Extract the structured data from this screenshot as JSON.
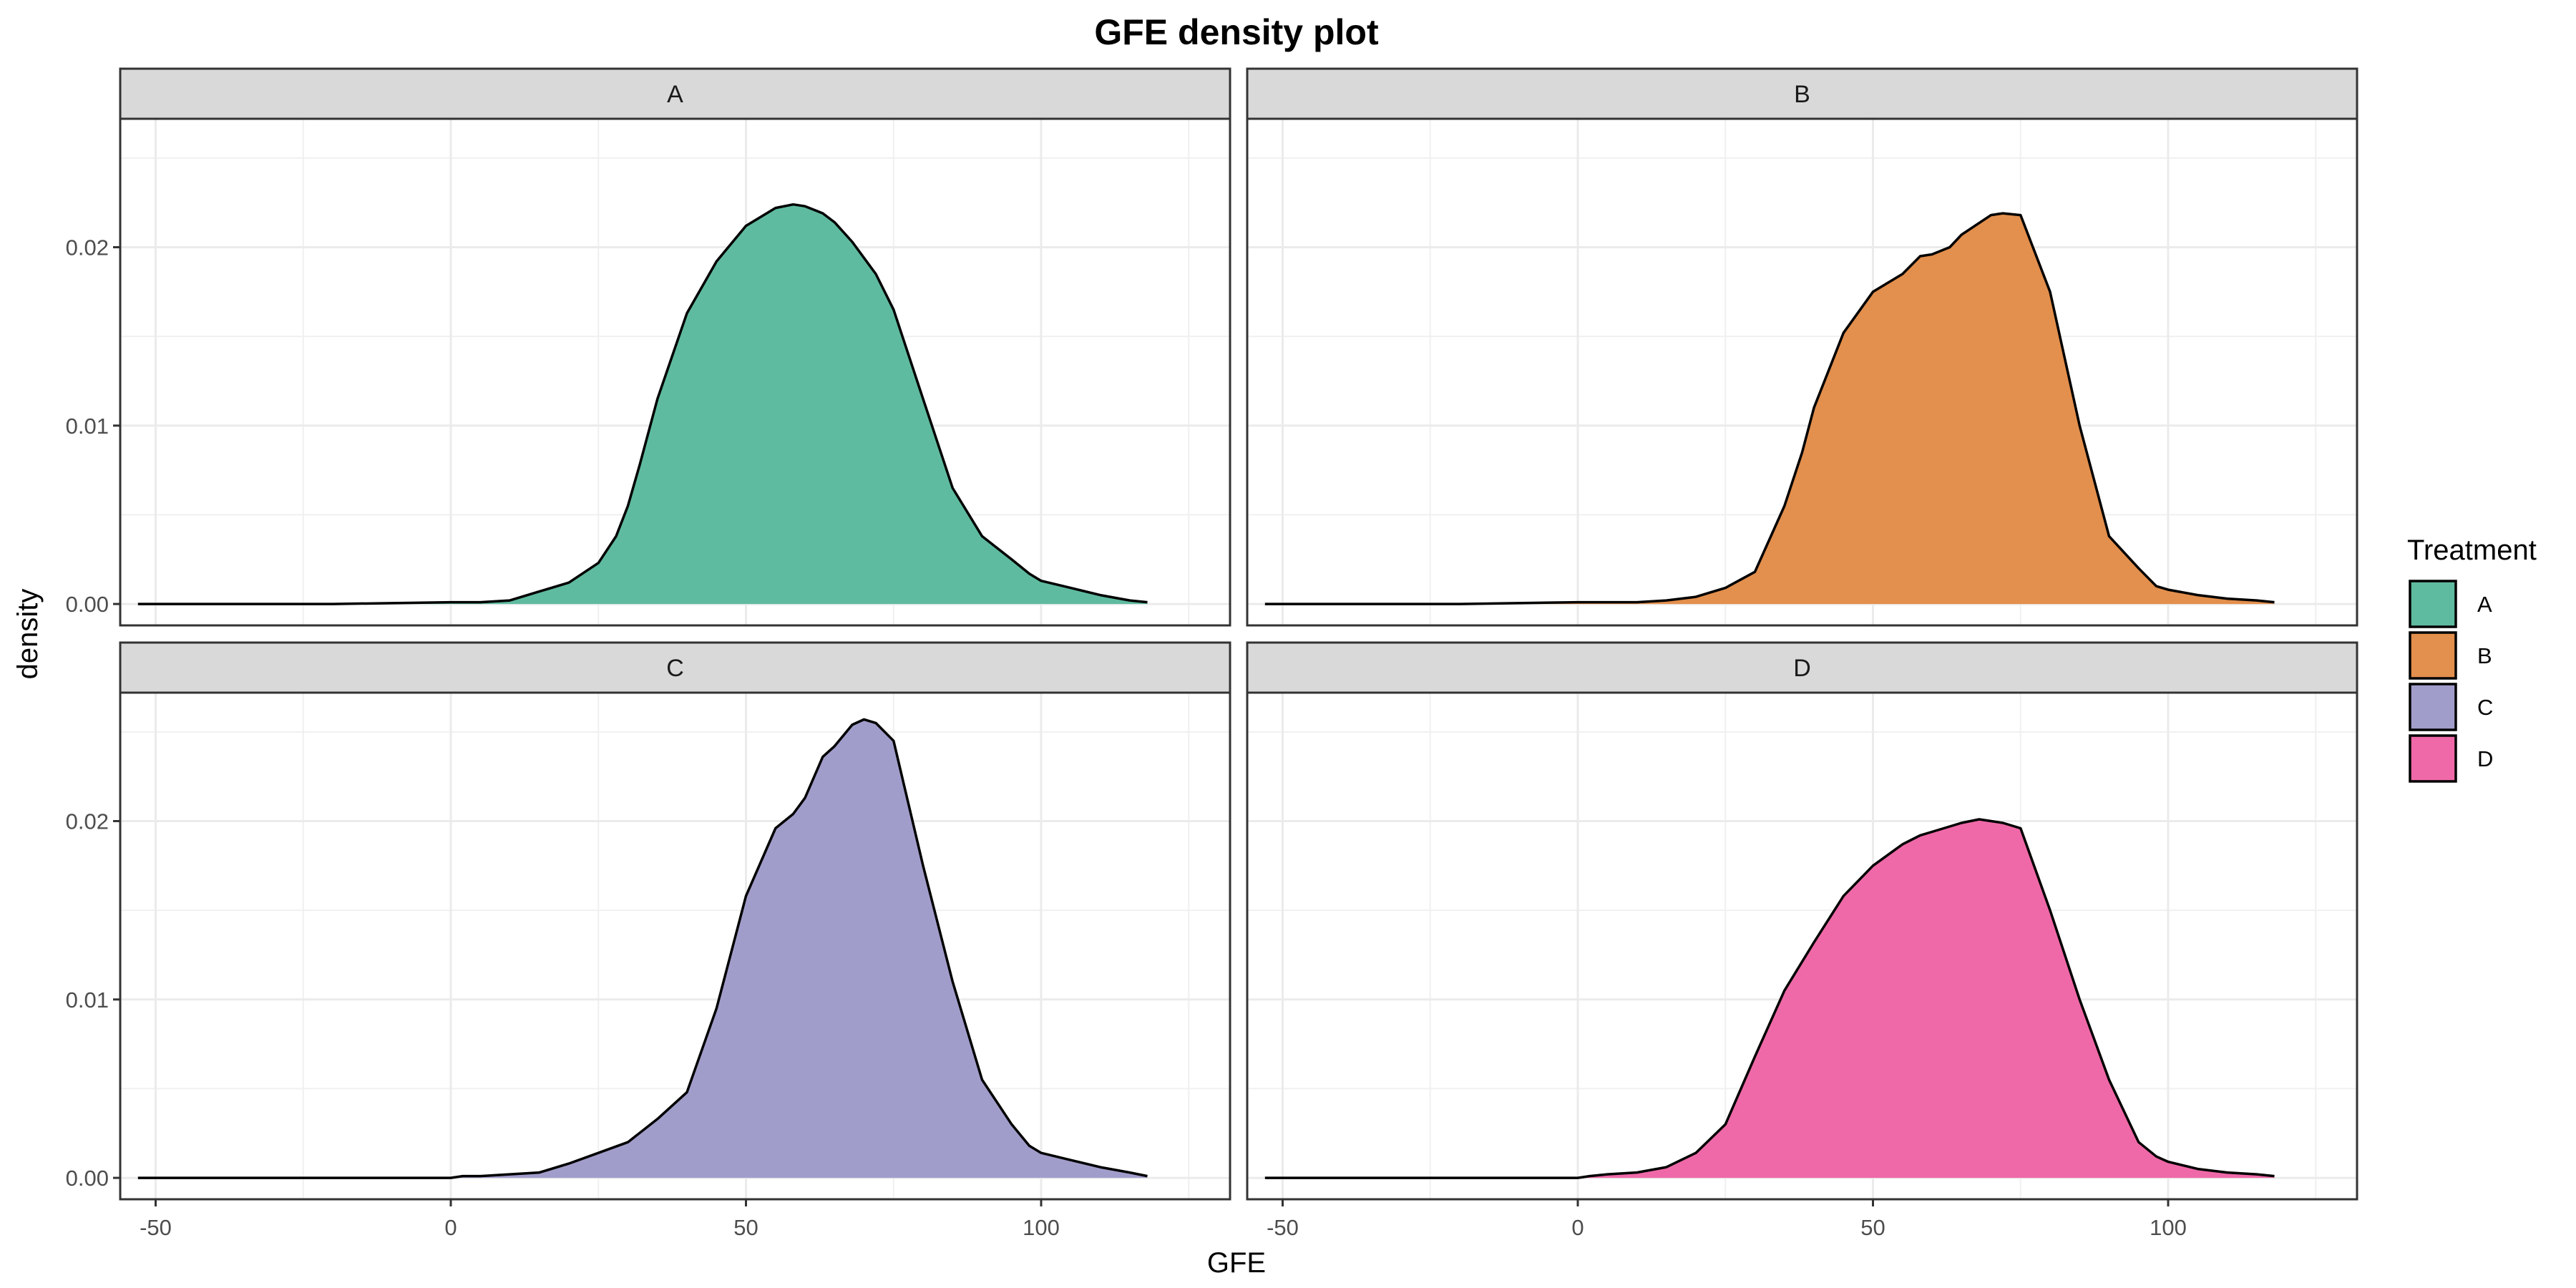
{
  "chart_data": {
    "type": "area",
    "title": "GFE density plot",
    "xlabel": "GFE",
    "ylabel": "density",
    "xlim": [
      -56,
      132
    ],
    "ylim": [
      -0.0012,
      0.0272
    ],
    "x_ticks": [
      -50,
      0,
      50,
      100
    ],
    "x_tick_labels": [
      "-50",
      "0",
      "50",
      "100"
    ],
    "y_ticks": [
      0,
      0.01,
      0.02
    ],
    "y_tick_labels": [
      "0.00",
      "0.01",
      "0.02"
    ],
    "grid": true,
    "legend": {
      "title": "Treatment",
      "position": "right",
      "entries": [
        {
          "label": "A",
          "color": "#5fbba0"
        },
        {
          "label": "B",
          "color": "#e38f4d"
        },
        {
          "label": "C",
          "color": "#a19dcb"
        },
        {
          "label": "D",
          "color": "#ef69a8"
        }
      ]
    },
    "panels": [
      {
        "label": "A",
        "color": "#5fbba0",
        "x": [
          -53,
          -40,
          -20,
          0,
          2,
          5,
          10,
          15,
          20,
          25,
          28,
          30,
          32,
          35,
          40,
          45,
          50,
          55,
          58,
          60,
          63,
          65,
          68,
          72,
          75,
          80,
          85,
          90,
          95,
          98,
          100,
          105,
          110,
          115,
          118
        ],
        "y": [
          0.0,
          0.0,
          0.0,
          0.0001,
          0.0001,
          0.0001,
          0.0002,
          0.0007,
          0.0012,
          0.0023,
          0.0038,
          0.0055,
          0.0078,
          0.0115,
          0.0163,
          0.0192,
          0.0212,
          0.0222,
          0.0224,
          0.0223,
          0.0219,
          0.0214,
          0.0203,
          0.0185,
          0.0165,
          0.0115,
          0.0065,
          0.0038,
          0.0025,
          0.0017,
          0.0013,
          0.0009,
          0.0005,
          0.0002,
          0.0001
        ]
      },
      {
        "label": "B",
        "color": "#e38f4d",
        "x": [
          -53,
          -40,
          -20,
          0,
          2,
          5,
          10,
          15,
          20,
          25,
          30,
          35,
          38,
          40,
          45,
          50,
          55,
          58,
          60,
          63,
          65,
          70,
          72,
          75,
          80,
          85,
          90,
          95,
          98,
          100,
          105,
          110,
          115,
          118
        ],
        "y": [
          0.0,
          0.0,
          0.0,
          0.0001,
          0.0001,
          0.0001,
          0.0001,
          0.0002,
          0.0004,
          0.0009,
          0.0018,
          0.0055,
          0.0085,
          0.011,
          0.0152,
          0.0175,
          0.0185,
          0.0195,
          0.0196,
          0.02,
          0.0207,
          0.0218,
          0.0219,
          0.0218,
          0.0175,
          0.01,
          0.0038,
          0.002,
          0.001,
          0.0008,
          0.0005,
          0.0003,
          0.0002,
          0.0001
        ]
      },
      {
        "label": "C",
        "color": "#a19dcb",
        "x": [
          -53,
          -40,
          -20,
          0,
          2,
          5,
          10,
          15,
          20,
          25,
          30,
          35,
          40,
          45,
          50,
          55,
          58,
          60,
          63,
          65,
          68,
          70,
          72,
          75,
          80,
          85,
          90,
          95,
          98,
          100,
          105,
          110,
          115,
          118
        ],
        "y": [
          0.0,
          0.0,
          0.0,
          0.0,
          0.0001,
          0.0001,
          0.0002,
          0.0003,
          0.0008,
          0.0014,
          0.002,
          0.0033,
          0.0048,
          0.0095,
          0.0158,
          0.0196,
          0.0204,
          0.0213,
          0.0236,
          0.0242,
          0.0254,
          0.0257,
          0.0255,
          0.0245,
          0.0175,
          0.011,
          0.0055,
          0.003,
          0.0018,
          0.0014,
          0.001,
          0.0006,
          0.0003,
          0.0001
        ]
      },
      {
        "label": "D",
        "color": "#ef69a8",
        "x": [
          -53,
          -40,
          -20,
          0,
          2,
          5,
          10,
          15,
          20,
          25,
          30,
          35,
          40,
          45,
          50,
          55,
          58,
          60,
          63,
          65,
          68,
          70,
          72,
          75,
          80,
          85,
          90,
          95,
          98,
          100,
          105,
          110,
          115,
          118
        ],
        "y": [
          0.0,
          0.0,
          0.0,
          0.0,
          0.0001,
          0.0002,
          0.0003,
          0.0006,
          0.0014,
          0.003,
          0.0068,
          0.0105,
          0.0132,
          0.0158,
          0.0175,
          0.0187,
          0.0192,
          0.0194,
          0.0197,
          0.0199,
          0.0201,
          0.02,
          0.0199,
          0.0196,
          0.015,
          0.01,
          0.0055,
          0.002,
          0.0012,
          0.0009,
          0.0005,
          0.0003,
          0.0002,
          0.0001
        ]
      }
    ]
  }
}
